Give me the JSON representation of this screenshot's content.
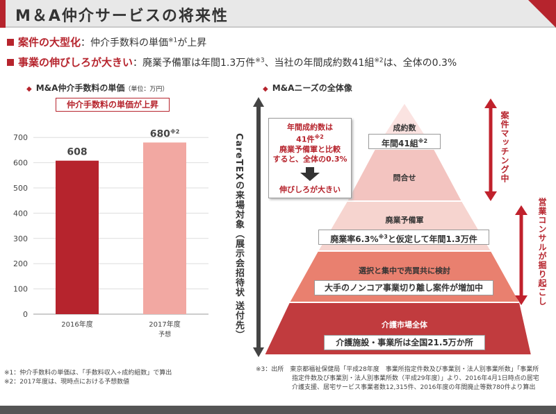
{
  "header": {
    "title": "M＆A仲介サービスの将来性"
  },
  "bullets": [
    {
      "highlight": "案件の大型化",
      "sep": "：",
      "text": "仲介手数料の単価",
      "sup": "※1",
      "tail": "が上昇"
    },
    {
      "highlight": "事業の伸びしろが大きい",
      "sep": "：",
      "text": "廃業予備軍は年間1.3万件",
      "sup": "※3",
      "tail": "、当社の年間成約数41組",
      "sup2": "※2",
      "tail2": "は、全体の0.3%"
    }
  ],
  "left_section": {
    "heading": "M&A仲介手数料の単価",
    "unit": "（単位：万円）",
    "badge": "仲介手数料の単価が上昇",
    "footnotes": [
      "※1：仲介手数料の単価は、「手数料収入÷成約組数」で算出",
      "※2：2017年度は、現時点における予想数値"
    ]
  },
  "chart_data": {
    "type": "bar",
    "categories": [
      "2016年度",
      "2017年度"
    ],
    "category_sub": [
      "",
      "予想"
    ],
    "values": [
      608,
      680
    ],
    "value_labels": [
      "608",
      "680"
    ],
    "value_label_sup": [
      "",
      "※2"
    ],
    "yticks": [
      0,
      100,
      200,
      300,
      400,
      500,
      600,
      700
    ],
    "ylim": [
      0,
      750
    ],
    "grid": true,
    "colors": [
      "#b6242d",
      "#f2a8a2"
    ]
  },
  "right_section": {
    "heading": "M&Aニーズの全体像",
    "left_vertical": "CareTEXの来場対象（展示会招待状 送付先）",
    "right_vertical_1": "案件マッチング中",
    "right_vertical_2": "営業コンサルが掘り起こし",
    "callout": {
      "line1": "年間成約数は",
      "line2": "41件",
      "line2_sup": "※2",
      "line3": "廃業予備軍と比較",
      "line4": "すると、全体の0.3%",
      "line5": "伸びしろが大きい"
    },
    "pyramid": {
      "tier1_label": "成約数",
      "tier1_box": "年間41組",
      "tier1_sup": "※2",
      "tier2_label": "問合せ",
      "tier3_label": "廃業予備軍",
      "tier3_box": "廃業率6.3%",
      "tier3_sup": "※3",
      "tier3_box_tail": "と仮定して年間1.3万件",
      "tier4_label": "選択と集中で売買共に検討",
      "tier4_box": "大手のノンコア事業切り離し案件が増加中",
      "tier5_label": "介護市場全体",
      "tier5_box": "介護施設・事業所は全国21.5万か所"
    },
    "colors": {
      "tier1": "#fbe3e1",
      "tier2": "#f3c4c0",
      "tier3": "#f6d4cf",
      "tier4": "#e9806f",
      "tier5": "#c13b3e"
    },
    "footnote": [
      "※3：出所　東京都福祉保健局「平成28年度　事業所指定件数及び事業別・法人別事業所数」「事業所",
      "指定件数及び事業別・法人別事業所数（平成29年度）」より、2016年4月1日時点の居宅",
      "介護支援、居宅サービス事業者数12,315件、2016年度の年間廃止等数780件より算出"
    ]
  }
}
